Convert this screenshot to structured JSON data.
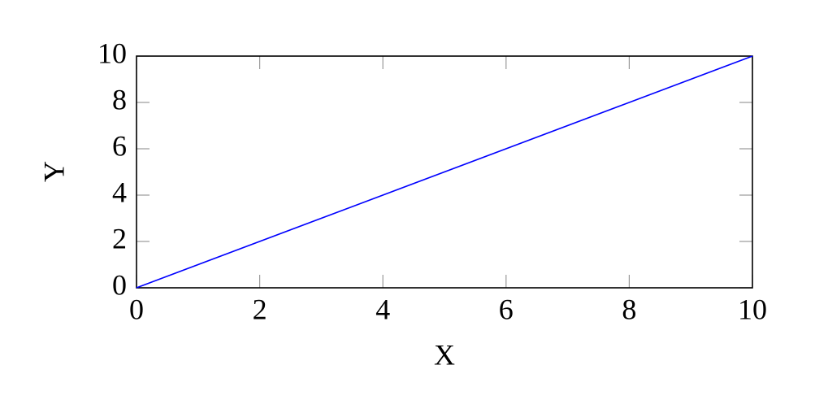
{
  "chart_data": {
    "type": "line",
    "xlabel": "X",
    "ylabel": "Y",
    "x": [
      0,
      10
    ],
    "values": [
      0,
      10
    ],
    "color": "#0000ff",
    "xlim": [
      0,
      10
    ],
    "ylim": [
      0,
      10
    ],
    "xticks": [
      0,
      2,
      4,
      6,
      8,
      10
    ],
    "yticks": [
      0,
      2,
      4,
      6,
      8,
      10
    ]
  }
}
